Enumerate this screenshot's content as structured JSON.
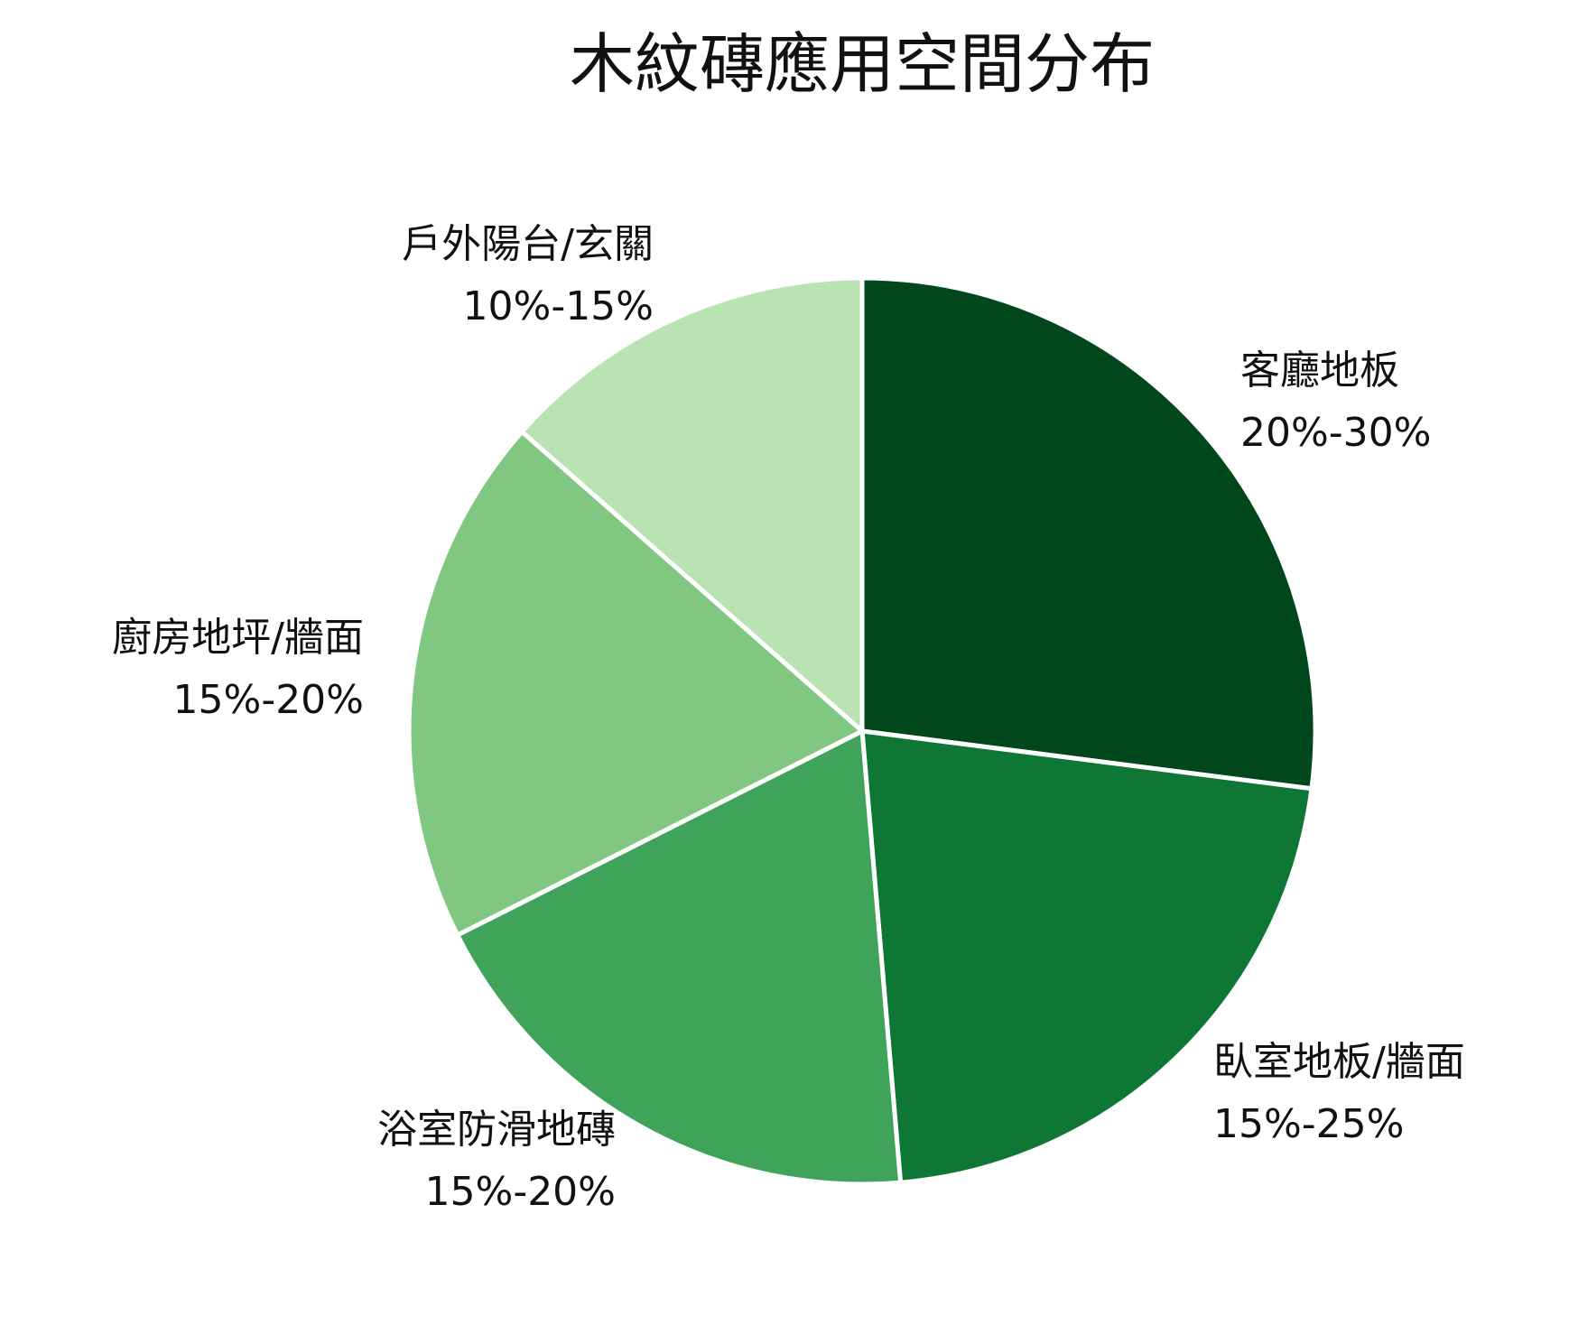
{
  "chart_data": {
    "type": "pie",
    "title": "木紋磚應用空間分布",
    "slices": [
      {
        "label": "客廳地板",
        "value_label": "20%-30%",
        "value": 25,
        "color": "#00481b"
      },
      {
        "label": "臥室地板/牆面",
        "value_label": "15%-25%",
        "value": 20,
        "color": "#0f7735"
      },
      {
        "label": "浴室防滑地磚",
        "value_label": "15%-20%",
        "value": 17.5,
        "color": "#3fa45a"
      },
      {
        "label": "廚房地坪/牆面",
        "value_label": "15%-20%",
        "value": 17.5,
        "color": "#80c781"
      },
      {
        "label": "戶外陽台/玄關",
        "value_label": "10%-15%",
        "value": 12.5,
        "color": "#b9e3b3"
      }
    ]
  }
}
